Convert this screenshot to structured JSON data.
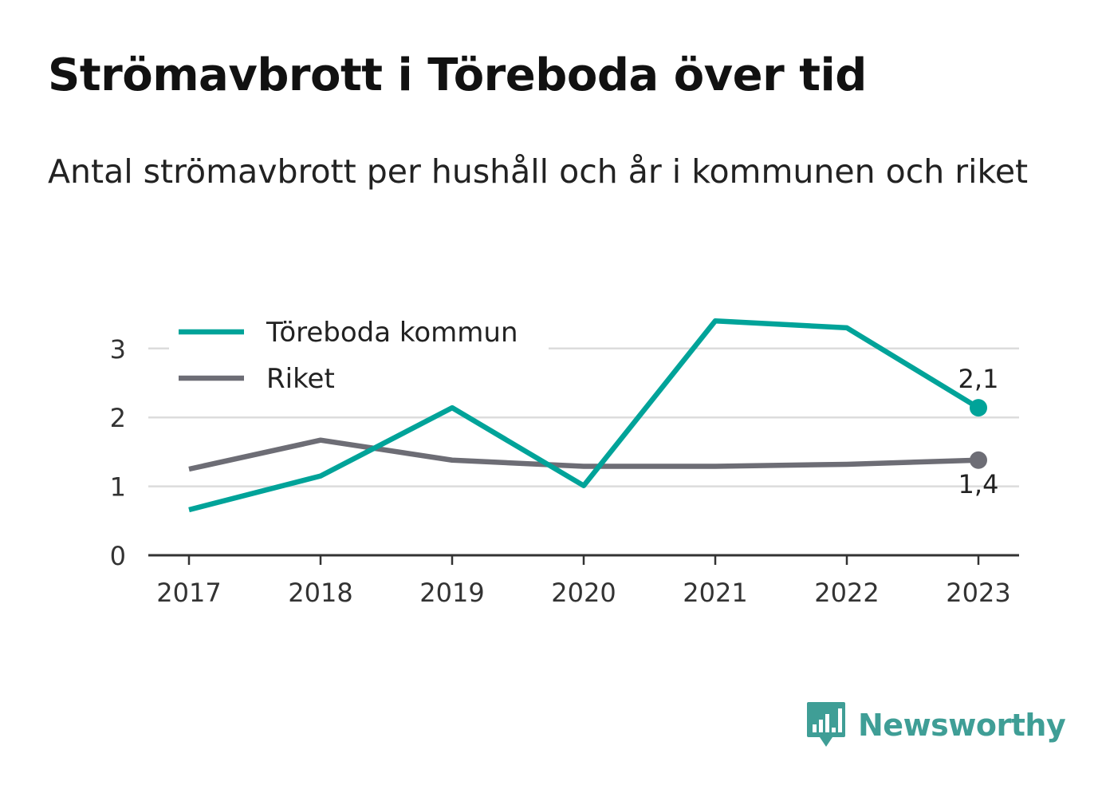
{
  "header": {
    "title": "Strömavbrott i Töreboda över tid",
    "subtitle": "Antal strömavbrott per hushåll och år i kommunen och riket"
  },
  "brand": {
    "name": "Newsworthy",
    "icon": "bar-chart-logo-icon",
    "color": "#3f9e96"
  },
  "chart_data": {
    "type": "line",
    "x": [
      "2017",
      "2018",
      "2019",
      "2020",
      "2021",
      "2022",
      "2023"
    ],
    "ylim": [
      0,
      3.5
    ],
    "yticks": [
      "0",
      "1",
      "2",
      "3"
    ],
    "grid": true,
    "legend_position": "top-left",
    "series": [
      {
        "name": "Töreboda kommun",
        "color": "#00a399",
        "values": [
          0.66,
          1.15,
          2.14,
          1.01,
          3.4,
          3.3,
          2.14
        ],
        "end_label": "2,1"
      },
      {
        "name": "Riket",
        "color": "#6d6d75",
        "values": [
          1.25,
          1.67,
          1.38,
          1.29,
          1.29,
          1.32,
          1.38
        ],
        "end_label": "1,4"
      }
    ]
  }
}
